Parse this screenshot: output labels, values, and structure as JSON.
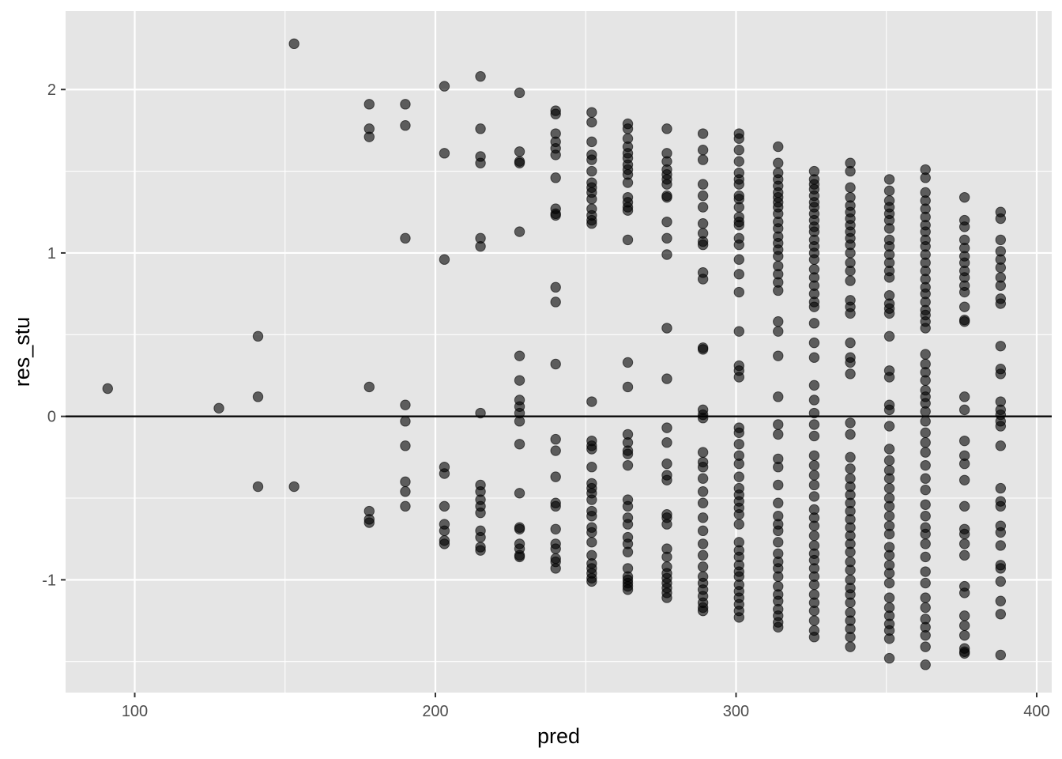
{
  "chart_data": {
    "type": "scatter",
    "title": "",
    "xlabel": "pred",
    "ylabel": "res_stu",
    "xlim": [
      77,
      405
    ],
    "ylim": [
      -1.69,
      2.48
    ],
    "x_ticks": [
      100,
      200,
      300,
      400
    ],
    "y_ticks": [
      -1,
      0,
      1,
      2
    ],
    "x_tick_labels": [
      "100",
      "200",
      "300",
      "400"
    ],
    "y_tick_labels": [
      "-1",
      "0",
      "1",
      "2"
    ],
    "grid": true,
    "reference_line_y": 0,
    "colors": {
      "panel": "#e5e5e5",
      "grid": "#ffffff",
      "point": "#000000",
      "reference_line": "#000000"
    },
    "point_opacity": 0.6,
    "columns": [
      {
        "x": 91,
        "y": [
          0.17
        ]
      },
      {
        "x": 128,
        "y": [
          0.05
        ]
      },
      {
        "x": 141,
        "y": [
          0.49,
          0.12,
          -0.43
        ]
      },
      {
        "x": 153,
        "y": [
          2.28,
          -0.43
        ]
      },
      {
        "x": 178,
        "y": [
          1.91,
          1.76,
          1.71,
          0.18,
          -0.58,
          -0.63,
          -0.65
        ]
      },
      {
        "x": 190,
        "y": [
          1.91,
          1.78,
          1.09,
          0.07,
          -0.03,
          -0.18,
          -0.4,
          -0.46,
          -0.55
        ]
      },
      {
        "x": 203,
        "y": [
          2.02,
          1.61,
          0.96,
          -0.31,
          -0.35,
          -0.55,
          -0.66,
          -0.7,
          -0.76,
          -0.78
        ]
      },
      {
        "x": 215,
        "y": [
          2.08,
          1.76,
          1.59,
          1.55,
          1.09,
          1.04,
          0.02,
          -0.42,
          -0.46,
          -0.51,
          -0.55,
          -0.59,
          -0.7,
          -0.74,
          -0.8,
          -0.82
        ]
      },
      {
        "x": 228,
        "y": [
          1.98,
          1.62,
          1.56,
          1.55,
          1.13,
          0.37,
          0.22,
          0.1,
          0.06,
          0.02,
          -0.03,
          -0.17,
          -0.47,
          -0.68,
          -0.69,
          -0.78,
          -0.81,
          -0.85,
          -0.86
        ]
      },
      {
        "x": 240,
        "y": [
          1.87,
          1.85,
          1.73,
          1.68,
          1.64,
          1.6,
          1.46,
          1.27,
          1.24,
          1.23,
          0.79,
          0.7,
          0.32,
          -0.14,
          -0.21,
          -0.37,
          -0.53,
          -0.55,
          -0.69,
          -0.78,
          -0.81,
          -0.87,
          -0.89,
          -0.93
        ]
      },
      {
        "x": 252,
        "y": [
          1.86,
          1.8,
          1.68,
          1.6,
          1.57,
          1.5,
          1.43,
          1.4,
          1.37,
          1.33,
          1.27,
          1.23,
          1.2,
          1.18,
          0.09,
          -0.15,
          -0.18,
          -0.2,
          -0.31,
          -0.41,
          -0.44,
          -0.47,
          -0.51,
          -0.58,
          -0.61,
          -0.68,
          -0.71,
          -0.77,
          -0.85,
          -0.9,
          -0.93,
          -0.96,
          -0.99,
          -1.01
        ]
      },
      {
        "x": 264,
        "y": [
          1.79,
          1.76,
          1.7,
          1.65,
          1.61,
          1.58,
          1.54,
          1.51,
          1.48,
          1.43,
          1.34,
          1.31,
          1.28,
          1.26,
          1.08,
          0.33,
          0.18,
          -0.11,
          -0.16,
          -0.21,
          -0.23,
          -0.3,
          -0.51,
          -0.55,
          -0.62,
          -0.66,
          -0.74,
          -0.78,
          -0.83,
          -0.93,
          -0.98,
          -1.0,
          -1.02,
          -1.04,
          -1.06
        ]
      },
      {
        "x": 277,
        "y": [
          1.76,
          1.61,
          1.56,
          1.51,
          1.48,
          1.45,
          1.42,
          1.35,
          1.34,
          1.19,
          1.09,
          0.99,
          0.54,
          0.23,
          -0.07,
          -0.16,
          -0.29,
          -0.36,
          -0.39,
          -0.6,
          -0.62,
          -0.66,
          -0.81,
          -0.86,
          -0.92,
          -0.96,
          -0.99,
          -1.02,
          -1.05,
          -1.08,
          -1.11
        ]
      },
      {
        "x": 289,
        "y": [
          1.73,
          1.63,
          1.57,
          1.42,
          1.35,
          1.28,
          1.18,
          1.12,
          1.07,
          1.05,
          0.88,
          0.84,
          0.42,
          0.41,
          0.04,
          0.01,
          -0.01,
          -0.22,
          -0.28,
          -0.31,
          -0.38,
          -0.46,
          -0.53,
          -0.62,
          -0.7,
          -0.78,
          -0.85,
          -0.92,
          -0.98,
          -1.02,
          -1.06,
          -1.1,
          -1.14,
          -1.17,
          -1.19
        ]
      },
      {
        "x": 301,
        "y": [
          1.73,
          1.7,
          1.63,
          1.56,
          1.49,
          1.45,
          1.42,
          1.35,
          1.33,
          1.28,
          1.22,
          1.19,
          1.17,
          1.09,
          1.05,
          0.96,
          0.87,
          0.76,
          0.52,
          0.31,
          0.28,
          0.24,
          -0.07,
          -0.1,
          -0.17,
          -0.24,
          -0.29,
          -0.37,
          -0.44,
          -0.48,
          -0.52,
          -0.56,
          -0.6,
          -0.66,
          -0.77,
          -0.82,
          -0.86,
          -0.91,
          -0.95,
          -0.98,
          -1.03,
          -1.07,
          -1.11,
          -1.15,
          -1.19,
          -1.23
        ]
      },
      {
        "x": 314,
        "y": [
          1.65,
          1.55,
          1.49,
          1.45,
          1.41,
          1.37,
          1.34,
          1.31,
          1.28,
          1.24,
          1.19,
          1.15,
          1.1,
          1.06,
          1.02,
          0.98,
          0.92,
          0.87,
          0.82,
          0.77,
          0.58,
          0.52,
          0.37,
          0.12,
          -0.05,
          -0.11,
          -0.26,
          -0.31,
          -0.42,
          -0.53,
          -0.61,
          -0.66,
          -0.7,
          -0.77,
          -0.84,
          -0.89,
          -0.93,
          -0.98,
          -1.04,
          -1.09,
          -1.13,
          -1.18,
          -1.22,
          -1.26,
          -1.29
        ]
      },
      {
        "x": 326,
        "y": [
          1.5,
          1.45,
          1.42,
          1.39,
          1.35,
          1.31,
          1.28,
          1.24,
          1.2,
          1.16,
          1.13,
          1.08,
          1.04,
          1.0,
          0.96,
          0.9,
          0.85,
          0.8,
          0.75,
          0.7,
          0.67,
          0.57,
          0.45,
          0.36,
          0.19,
          0.1,
          0.02,
          -0.05,
          -0.12,
          -0.24,
          -0.3,
          -0.36,
          -0.42,
          -0.49,
          -0.57,
          -0.62,
          -0.67,
          -0.73,
          -0.79,
          -0.84,
          -0.88,
          -0.93,
          -0.98,
          -1.03,
          -1.09,
          -1.14,
          -1.19,
          -1.25,
          -1.31,
          -1.35
        ]
      },
      {
        "x": 338,
        "y": [
          1.55,
          1.5,
          1.4,
          1.34,
          1.29,
          1.25,
          1.21,
          1.17,
          1.13,
          1.09,
          1.05,
          1.0,
          0.94,
          0.89,
          0.83,
          0.71,
          0.67,
          0.63,
          0.45,
          0.36,
          0.33,
          0.26,
          -0.04,
          -0.11,
          -0.25,
          -0.32,
          -0.38,
          -0.43,
          -0.48,
          -0.53,
          -0.58,
          -0.63,
          -0.68,
          -0.73,
          -0.78,
          -0.83,
          -0.89,
          -0.94,
          -1.0,
          -1.05,
          -1.09,
          -1.14,
          -1.2,
          -1.25,
          -1.3,
          -1.35,
          -1.41
        ]
      },
      {
        "x": 351,
        "y": [
          1.45,
          1.38,
          1.32,
          1.28,
          1.24,
          1.2,
          1.15,
          1.08,
          1.04,
          0.99,
          0.94,
          0.89,
          0.85,
          0.74,
          0.69,
          0.66,
          0.63,
          0.49,
          0.28,
          0.24,
          0.07,
          0.04,
          -0.06,
          -0.2,
          -0.27,
          -0.33,
          -0.38,
          -0.44,
          -0.5,
          -0.55,
          -0.61,
          -0.67,
          -0.72,
          -0.8,
          -0.85,
          -0.91,
          -0.96,
          -1.02,
          -1.11,
          -1.17,
          -1.22,
          -1.27,
          -1.31,
          -1.36,
          -1.48
        ]
      },
      {
        "x": 363,
        "y": [
          1.51,
          1.46,
          1.37,
          1.32,
          1.27,
          1.22,
          1.17,
          1.13,
          1.08,
          1.04,
          0.99,
          0.94,
          0.89,
          0.84,
          0.79,
          0.75,
          0.7,
          0.65,
          0.62,
          0.58,
          0.54,
          0.38,
          0.32,
          0.27,
          0.22,
          0.16,
          0.12,
          0.08,
          0.03,
          -0.03,
          -0.1,
          -0.16,
          -0.22,
          -0.3,
          -0.38,
          -0.45,
          -0.54,
          -0.61,
          -0.68,
          -0.72,
          -0.78,
          -0.86,
          -0.95,
          -1.02,
          -1.11,
          -1.17,
          -1.24,
          -1.29,
          -1.34,
          -1.41,
          -1.52
        ]
      },
      {
        "x": 376,
        "y": [
          1.34,
          1.2,
          1.16,
          1.08,
          1.03,
          0.98,
          0.94,
          0.89,
          0.85,
          0.8,
          0.76,
          0.67,
          0.59,
          0.58,
          0.12,
          0.04,
          -0.15,
          -0.24,
          -0.29,
          -0.39,
          -0.55,
          -0.69,
          -0.72,
          -0.78,
          -0.85,
          -1.04,
          -1.08,
          -1.22,
          -1.28,
          -1.34,
          -1.42,
          -1.44,
          -1.45
        ]
      },
      {
        "x": 388,
        "y": [
          1.25,
          1.21,
          1.08,
          1.01,
          0.96,
          0.91,
          0.85,
          0.8,
          0.72,
          0.69,
          0.43,
          0.29,
          0.26,
          0.09,
          0.04,
          0.01,
          -0.03,
          -0.06,
          -0.18,
          -0.44,
          -0.52,
          -0.55,
          -0.67,
          -0.71,
          -0.79,
          -0.91,
          -0.93,
          -1.01,
          -1.13,
          -1.21,
          -1.46
        ]
      }
    ]
  }
}
